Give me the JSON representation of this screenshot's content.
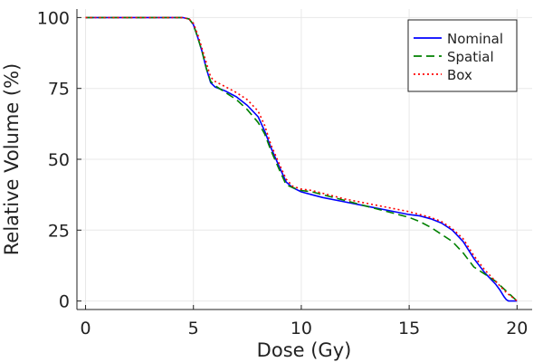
{
  "chart_data": {
    "type": "line",
    "xlabel": "Dose (Gy)",
    "ylabel": "Relative Volume (%)",
    "xlim": [
      -0.4,
      20.7
    ],
    "ylim": [
      -3,
      103
    ],
    "xticks": [
      "0",
      "5",
      "10",
      "15",
      "20"
    ],
    "yticks": [
      "0",
      "25",
      "50",
      "75",
      "100"
    ],
    "grid": true,
    "legend_position": "top-right",
    "series": [
      {
        "name": "Nominal",
        "color": "#0000ff",
        "style": "solid",
        "x": [
          0,
          4.5,
          4.8,
          5.0,
          5.2,
          5.4,
          5.6,
          5.8,
          6.0,
          6.5,
          7.0,
          7.5,
          8.0,
          8.3,
          8.6,
          9.0,
          9.3,
          9.6,
          10.0,
          10.5,
          11,
          12,
          13,
          14,
          15,
          15.5,
          16,
          16.5,
          17,
          17.5,
          18,
          18.5,
          19,
          19.2,
          19.4,
          19.5,
          19.6,
          20.0
        ],
        "y": [
          100,
          100,
          99.5,
          97.5,
          93,
          88,
          82,
          77,
          75.5,
          74,
          72,
          69,
          65,
          60,
          54,
          47,
          42,
          40,
          38.5,
          37.5,
          36.5,
          35,
          33.5,
          32,
          30.5,
          30,
          29,
          27.5,
          25,
          21,
          15,
          10,
          6,
          4,
          1.5,
          0.5,
          0,
          0
        ]
      },
      {
        "name": "Spatial",
        "color": "#008000",
        "style": "dashed",
        "x": [
          0,
          4.5,
          4.8,
          5.0,
          5.2,
          5.4,
          5.6,
          5.8,
          6.0,
          6.5,
          7.0,
          7.5,
          8.0,
          8.3,
          8.6,
          9.0,
          9.3,
          9.6,
          10.0,
          10.5,
          11,
          12,
          13,
          14,
          15,
          15.5,
          16,
          16.5,
          17,
          17.5,
          18,
          18.5,
          19,
          19.5,
          20.0
        ],
        "y": [
          100,
          100,
          99.5,
          97.5,
          93,
          88,
          82,
          77.5,
          76,
          73.5,
          71,
          67.5,
          63,
          59,
          53,
          46,
          41,
          40,
          39,
          38.5,
          37.5,
          35.5,
          33.5,
          31.5,
          29.5,
          28,
          26,
          23.5,
          21,
          17,
          12,
          9.5,
          7,
          3.5,
          0
        ]
      },
      {
        "name": "Box",
        "color": "#ff0000",
        "style": "dotted",
        "x": [
          0,
          4.5,
          4.8,
          5.0,
          5.2,
          5.4,
          5.6,
          5.8,
          6.0,
          6.5,
          7.0,
          7.5,
          8.0,
          8.3,
          8.6,
          9.0,
          9.3,
          9.6,
          10.0,
          10.5,
          11,
          12,
          13,
          14,
          15,
          15.5,
          16,
          16.5,
          17,
          17.5,
          18,
          18.5,
          19,
          19.5,
          20.0
        ],
        "y": [
          100,
          100,
          99.5,
          98,
          94,
          89,
          84,
          79,
          77.5,
          75.5,
          73.5,
          71,
          67,
          62,
          55,
          48,
          43,
          40.5,
          39.5,
          39,
          38,
          36,
          34.5,
          33,
          31.5,
          30.5,
          29.5,
          28,
          25.5,
          22,
          16,
          11,
          7,
          3,
          0
        ]
      }
    ]
  }
}
